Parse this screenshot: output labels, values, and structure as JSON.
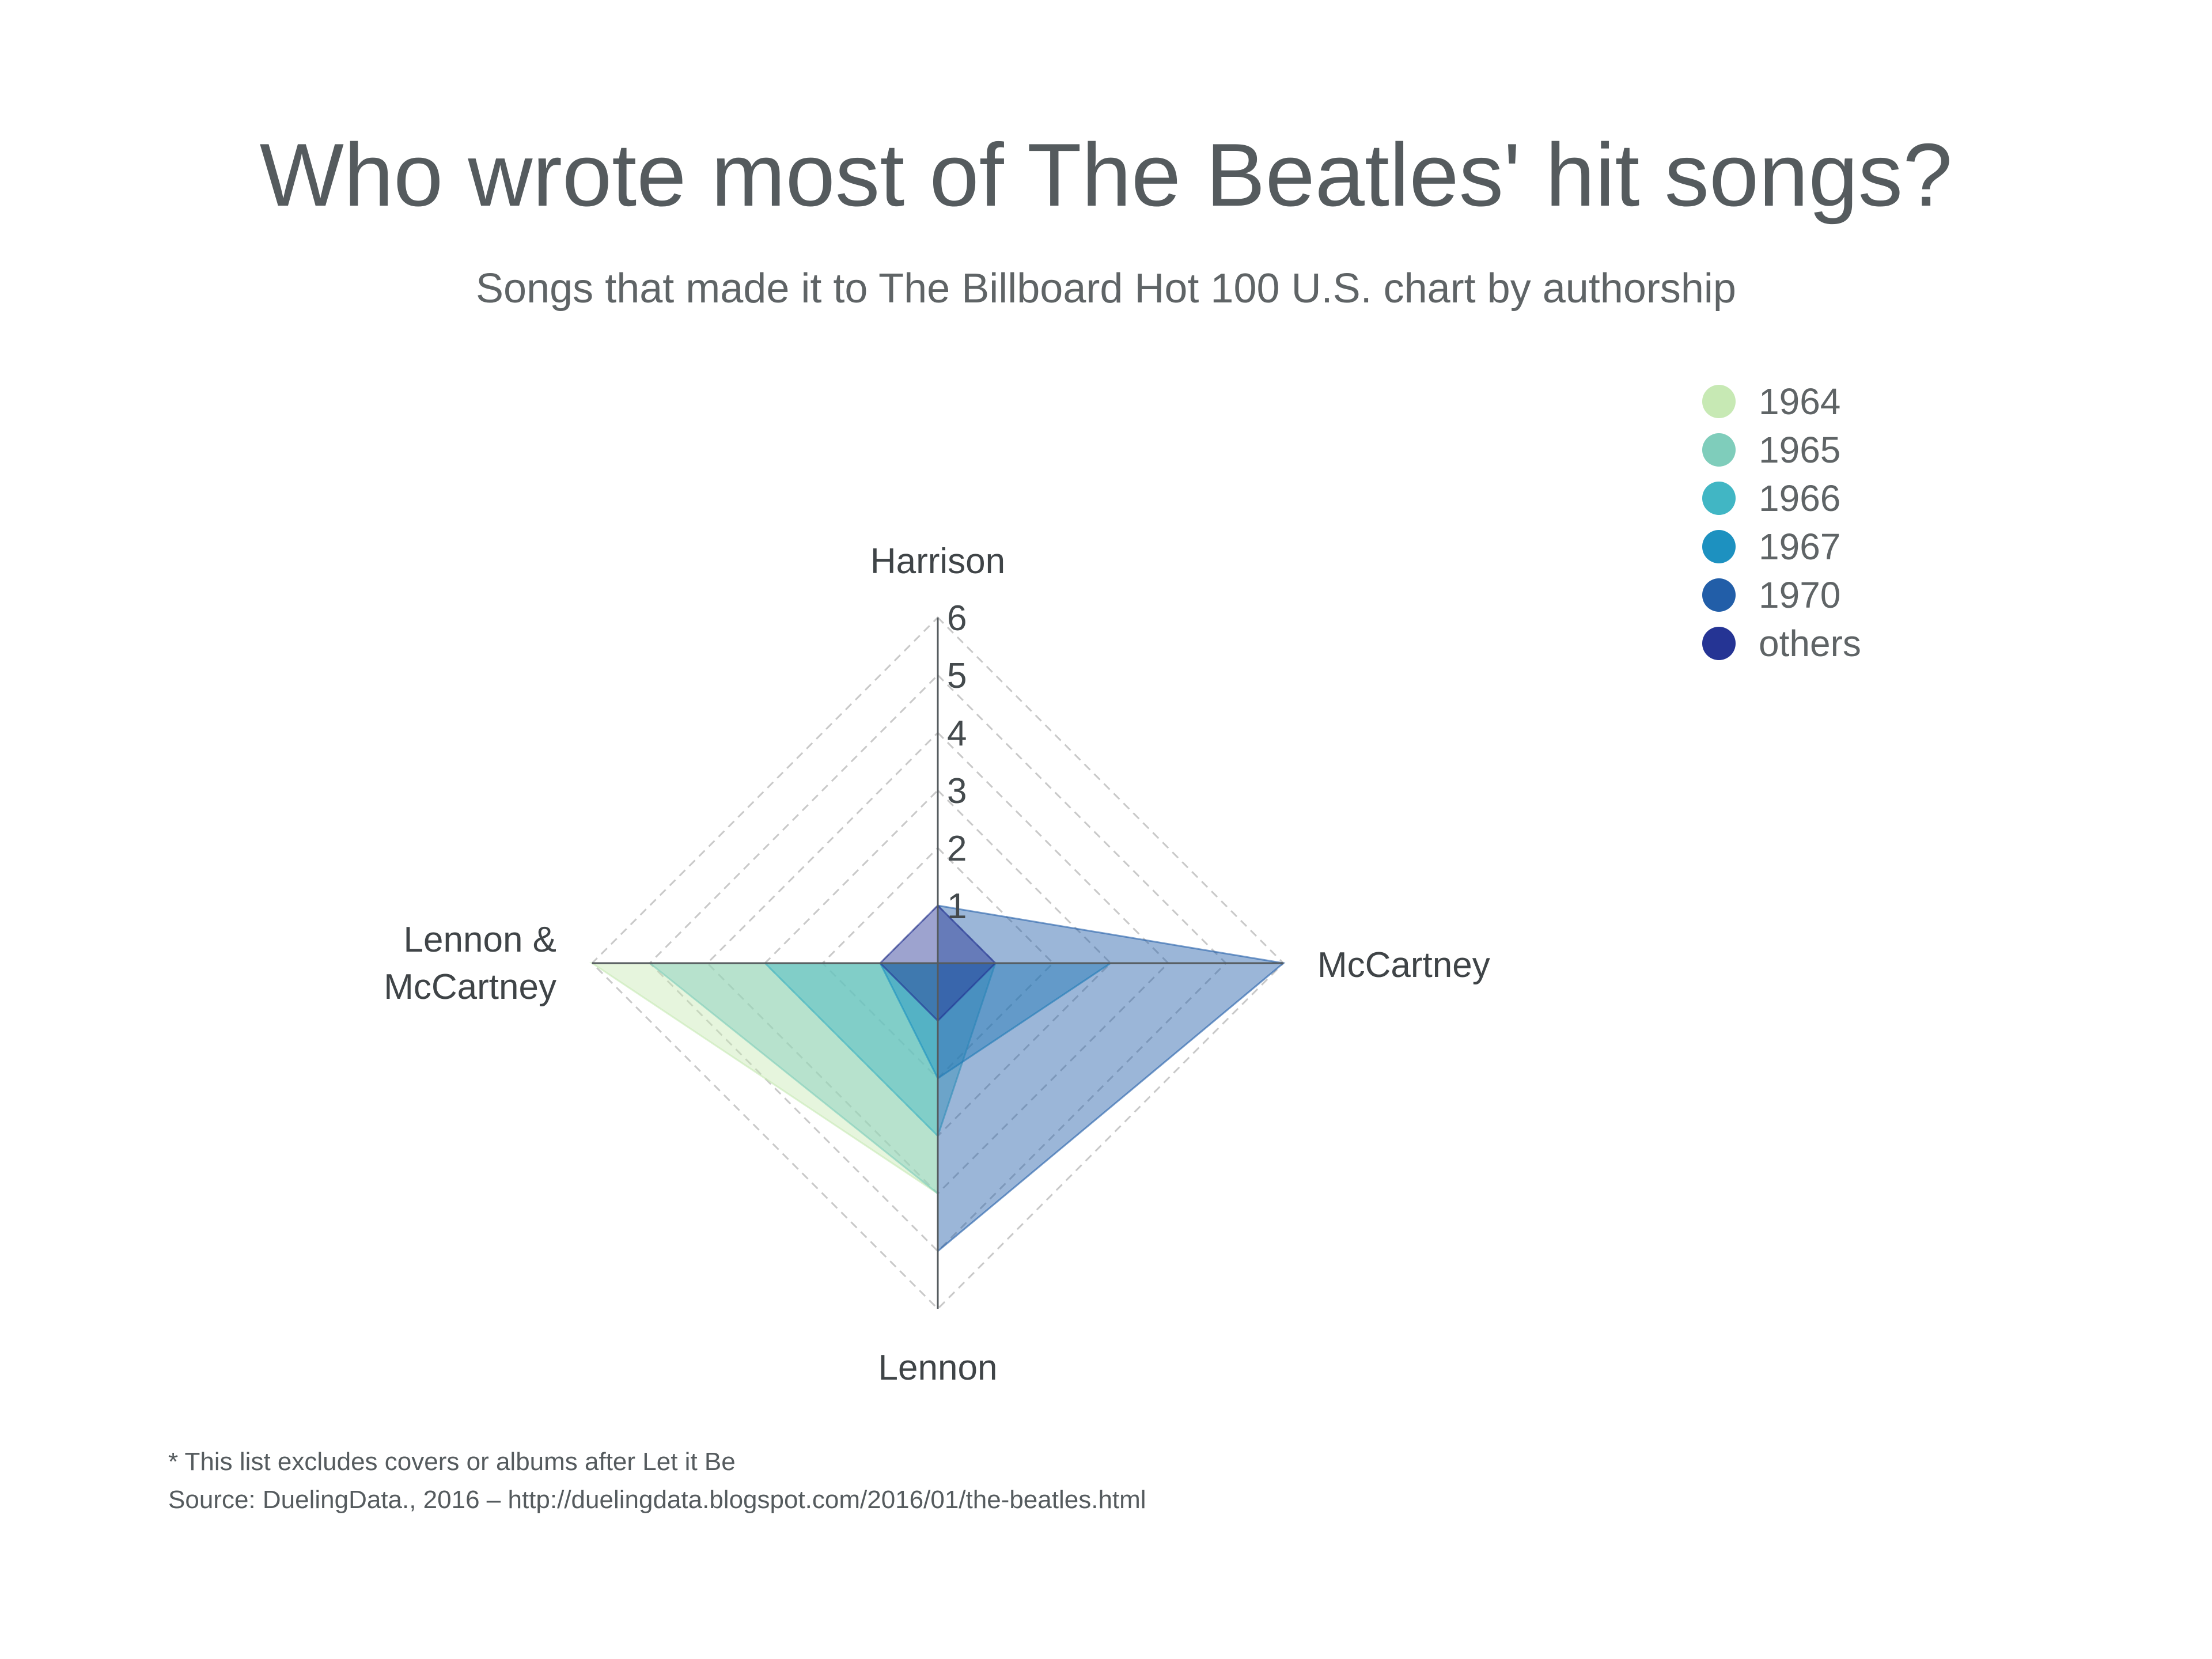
{
  "title": "Who wrote most of The Beatles' hit songs?",
  "subtitle": "Songs that made it to The Billboard Hot 100 U.S. chart by authorship",
  "footnote": {
    "note": "* This list excludes covers or albums after Let it Be",
    "source": "Source: DuelingData., 2016 – http://duelingdata.blogspot.com/2016/01/the-beatles.html"
  },
  "chart_data": {
    "type": "radar",
    "axes": [
      {
        "key": "harrison",
        "label": "Harrison"
      },
      {
        "key": "mccartney",
        "label": "McCartney"
      },
      {
        "key": "lennon",
        "label": "Lennon"
      },
      {
        "key": "lennon_mccartney",
        "label": "Lennon &\nMcCartney"
      }
    ],
    "scale": {
      "min": 0,
      "max": 6,
      "ticks": [
        "1",
        "2",
        "3",
        "4",
        "5",
        "6"
      ]
    },
    "legend_position": "top-right",
    "grid": true,
    "series": [
      {
        "name": "1964",
        "color": "#c7e9b4",
        "values": [
          0,
          0,
          4,
          6
        ]
      },
      {
        "name": "1965",
        "color": "#7fcdbb",
        "values": [
          0,
          0,
          4,
          5
        ]
      },
      {
        "name": "1966",
        "color": "#41b6c4",
        "values": [
          0,
          1,
          3,
          3
        ]
      },
      {
        "name": "1967",
        "color": "#1d91c0",
        "values": [
          0,
          3,
          2,
          1
        ]
      },
      {
        "name": "1970",
        "color": "#225ea8",
        "values": [
          1,
          6,
          5,
          0
        ]
      },
      {
        "name": "others",
        "color": "#253494",
        "values": [
          1,
          1,
          1,
          1
        ]
      }
    ]
  }
}
